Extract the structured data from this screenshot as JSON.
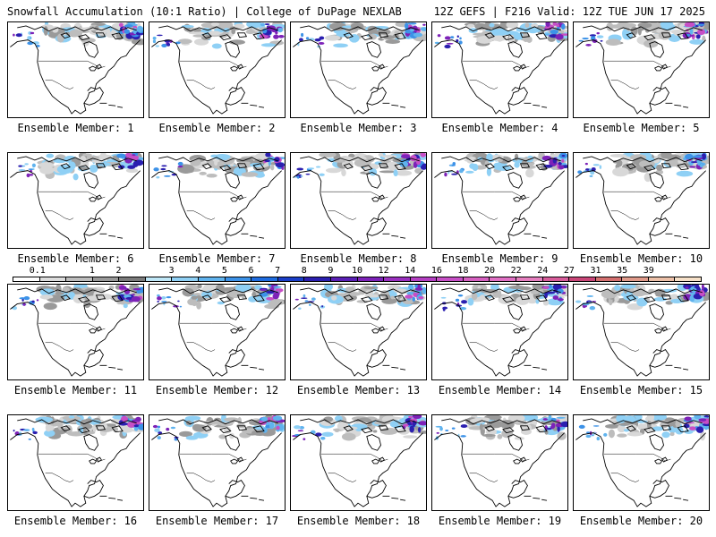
{
  "header": {
    "title": "Snowfall Accumulation (10:1 Ratio) | College of DuPage NEXLAB",
    "run_info": "12Z GEFS | F216 Valid: 12Z TUE JUN 17 2025"
  },
  "colorbar": {
    "labels": [
      "0.1",
      "1",
      "2",
      "3",
      "4",
      "5",
      "6",
      "7",
      "8",
      "9",
      "10",
      "12",
      "14",
      "16",
      "18",
      "20",
      "22",
      "24",
      "27",
      "31",
      "35",
      "39"
    ],
    "colors": [
      "#ffffff",
      "#dcdcdc",
      "#bdbdbd",
      "#9a9a9a",
      "#7b7b7b",
      "#bfe7f7",
      "#8fd0f5",
      "#60b3ee",
      "#3c92e8",
      "#1e6ce0",
      "#1a3ec8",
      "#2b1fb0",
      "#5a1fb5",
      "#7d22b8",
      "#9a2fbf",
      "#b43fc2",
      "#c74fc6",
      "#d660c0",
      "#e070c4",
      "#e67fbf",
      "#d85c9a",
      "#c94678",
      "#d47070",
      "#e09a8a",
      "#ecc0a8",
      "#f6e0c8"
    ]
  },
  "members": [
    {
      "label": "Ensemble Member: 1"
    },
    {
      "label": "Ensemble Member: 2"
    },
    {
      "label": "Ensemble Member: 3"
    },
    {
      "label": "Ensemble Member: 4"
    },
    {
      "label": "Ensemble Member: 5"
    },
    {
      "label": "Ensemble Member: 6"
    },
    {
      "label": "Ensemble Member: 7"
    },
    {
      "label": "Ensemble Member: 8"
    },
    {
      "label": "Ensemble Member: 9"
    },
    {
      "label": "Ensemble Member: 10"
    },
    {
      "label": "Ensemble Member: 11"
    },
    {
      "label": "Ensemble Member: 12"
    },
    {
      "label": "Ensemble Member: 13"
    },
    {
      "label": "Ensemble Member: 14"
    },
    {
      "label": "Ensemble Member: 15"
    },
    {
      "label": "Ensemble Member: 16"
    },
    {
      "label": "Ensemble Member: 17"
    },
    {
      "label": "Ensemble Member: 18"
    },
    {
      "label": "Ensemble Member: 19"
    },
    {
      "label": "Ensemble Member: 20"
    }
  ]
}
